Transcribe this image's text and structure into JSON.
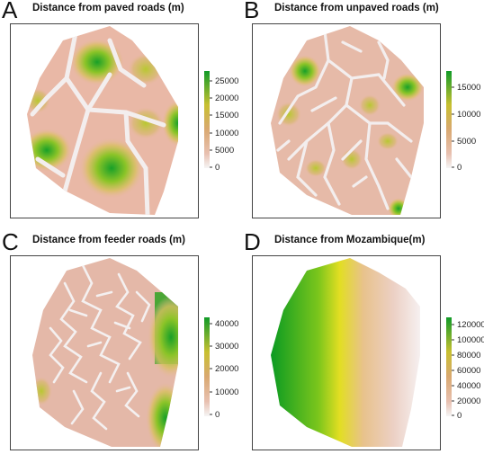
{
  "panels": [
    {
      "letter": "A",
      "title": "Distance from paved roads (m)",
      "legend": {
        "ticks": [
          "25000",
          "20000",
          "15000",
          "10000",
          "5000",
          "0"
        ]
      }
    },
    {
      "letter": "B",
      "title": "Distance from unpaved roads (m)",
      "legend": {
        "ticks": [
          "15000",
          "10000",
          "5000",
          "0"
        ]
      }
    },
    {
      "letter": "C",
      "title": "Distance from feeder roads (m)",
      "legend": {
        "ticks": [
          "40000",
          "30000",
          "20000",
          "10000",
          "0"
        ]
      }
    },
    {
      "letter": "D",
      "title": "Distance from Mozambique(m)",
      "legend": {
        "ticks": [
          "120000",
          "100000",
          "80000",
          "60000",
          "40000",
          "20000",
          "0"
        ]
      }
    }
  ],
  "colors": {
    "ramp_low": "#f2f2f2",
    "ramp_low_mid": "#e6b8a2",
    "ramp_mid": "#d6a65a",
    "ramp_high_mid": "#b8c52a",
    "ramp_high": "#0a9a2a",
    "mozambique_far": "#f4eeee",
    "mozambique_mid": "#e8e020",
    "mozambique_near": "#10a020"
  },
  "icons": [
    "gradient-legend",
    "raster-map"
  ]
}
